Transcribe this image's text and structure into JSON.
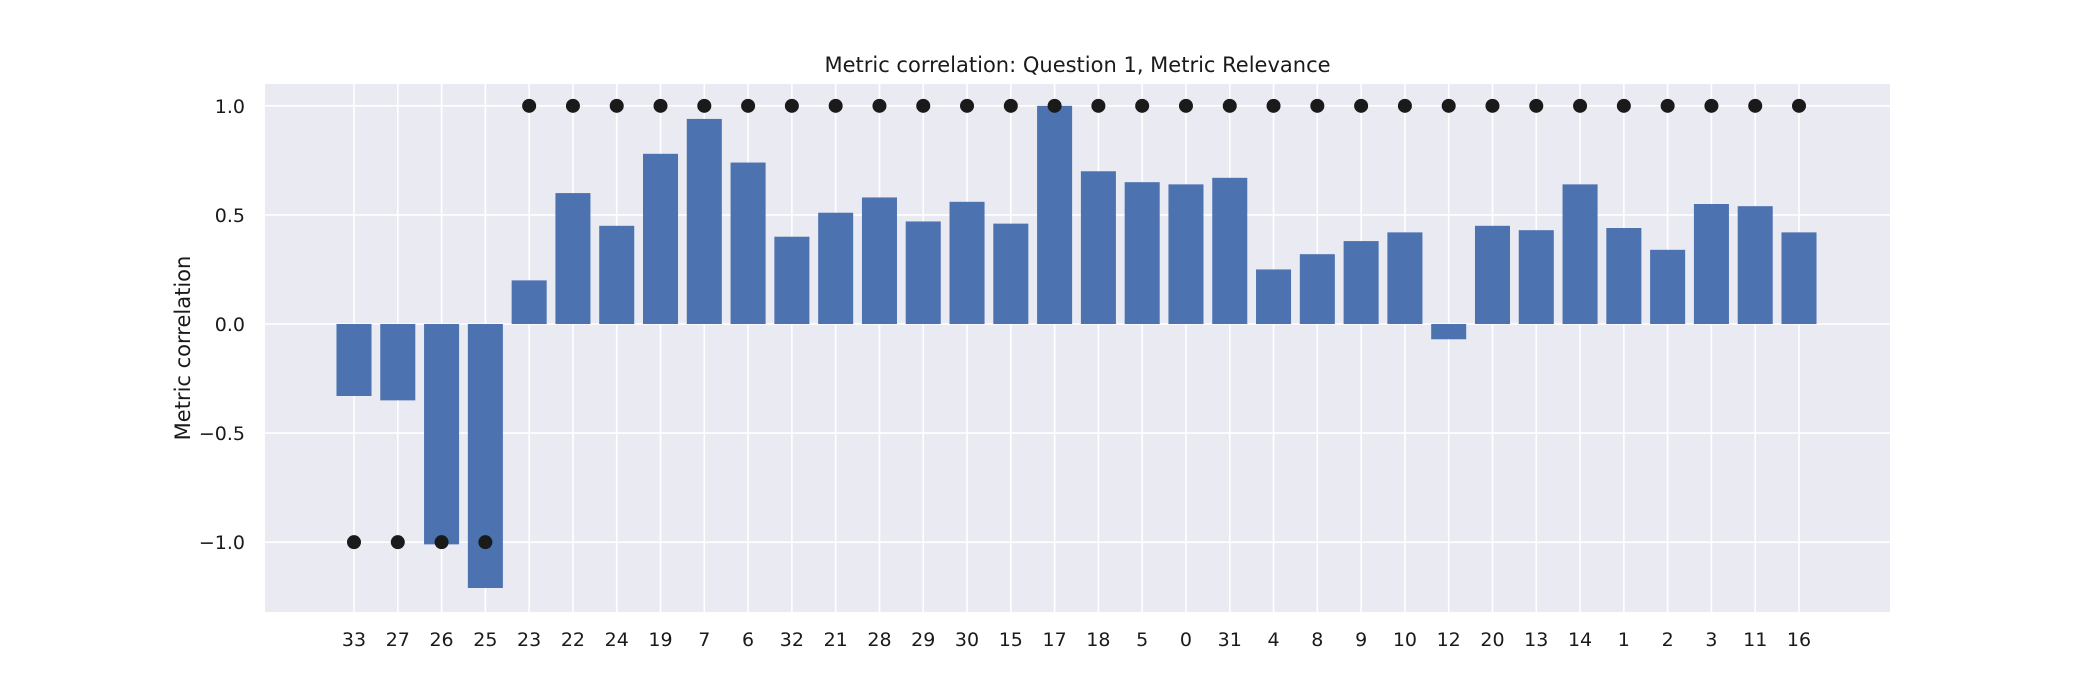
{
  "chart_data": {
    "type": "bar",
    "title": "Metric correlation: Question 1, Metric Relevance",
    "xlabel": "",
    "ylabel": "Metric correlation",
    "ylim": [
      -1.32,
      1.1
    ],
    "yticks": [
      1.0,
      0.5,
      0.0,
      -0.5,
      -1.0
    ],
    "ytick_labels": [
      "1.0",
      "0.5",
      "0.0",
      "−0.5",
      "−1.0"
    ],
    "grid": true,
    "categories": [
      "33",
      "27",
      "26",
      "25",
      "23",
      "22",
      "24",
      "19",
      "7",
      "6",
      "32",
      "21",
      "28",
      "29",
      "30",
      "15",
      "17",
      "18",
      "5",
      "0",
      "31",
      "4",
      "8",
      "9",
      "10",
      "12",
      "20",
      "13",
      "14",
      "1",
      "2",
      "3",
      "11",
      "16"
    ],
    "series": [
      {
        "type": "bar",
        "values": [
          -0.33,
          -0.35,
          -1.01,
          -1.21,
          0.2,
          0.6,
          0.45,
          0.78,
          0.94,
          0.74,
          0.4,
          0.51,
          0.58,
          0.47,
          0.56,
          0.46,
          1.0,
          0.7,
          0.65,
          0.64,
          0.67,
          0.25,
          0.32,
          0.38,
          0.42,
          -0.07,
          0.45,
          0.43,
          0.64,
          0.44,
          0.34,
          0.55,
          0.54,
          0.42
        ],
        "color": "#4c72b0"
      },
      {
        "type": "scatter",
        "values": [
          -1,
          -1,
          -1,
          -1,
          1,
          1,
          1,
          1,
          1,
          1,
          1,
          1,
          1,
          1,
          1,
          1,
          1,
          1,
          1,
          1,
          1,
          1,
          1,
          1,
          1,
          1,
          1,
          1,
          1,
          1,
          1,
          1,
          1,
          1
        ],
        "color": "#1a1a1a"
      }
    ],
    "background_color": "#eaeaf2",
    "grid_color": "#ffffff"
  }
}
